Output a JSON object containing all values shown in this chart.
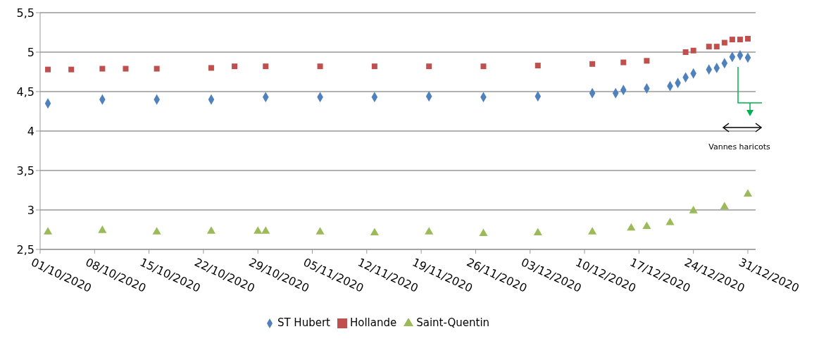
{
  "chart_data": {
    "type": "scatter",
    "xlim": [
      "2020-10-01",
      "2021-01-01"
    ],
    "xticks": [
      {
        "value": "2020-10-01",
        "label": "01/10/2020"
      },
      {
        "value": "2020-10-08",
        "label": "08/10/2020"
      },
      {
        "value": "2020-10-15",
        "label": "15/10/2020"
      },
      {
        "value": "2020-10-22",
        "label": "22/10/2020"
      },
      {
        "value": "2020-10-29",
        "label": "29/10/2020"
      },
      {
        "value": "2020-11-05",
        "label": "05/11/2020"
      },
      {
        "value": "2020-11-12",
        "label": "12/11/2020"
      },
      {
        "value": "2020-11-19",
        "label": "19/11/2020"
      },
      {
        "value": "2020-11-26",
        "label": "26/11/2020"
      },
      {
        "value": "2020-12-03",
        "label": "03/12/2020"
      },
      {
        "value": "2020-12-10",
        "label": "10/12/2020"
      },
      {
        "value": "2020-12-17",
        "label": "17/12/2020"
      },
      {
        "value": "2020-12-24",
        "label": "24/12/2020"
      },
      {
        "value": "2020-12-31",
        "label": "31/12/2020"
      }
    ],
    "ylim": [
      2.5,
      5.5
    ],
    "yticks": [
      {
        "value": 2.5,
        "label": "2,5"
      },
      3,
      {
        "value": 3.5,
        "label": "3,5"
      },
      4,
      {
        "value": 4.5,
        "label": "4,5"
      },
      5,
      {
        "value": 5.5,
        "label": "5,5"
      }
    ],
    "grid": "y",
    "legend": "bottom",
    "annotations": [
      "Vannes haricots"
    ],
    "series": [
      {
        "name": "ST Hubert",
        "color": "#4f81bd",
        "marker": "diamond",
        "x": [
          "2020-10-02",
          "2020-10-09",
          "2020-10-16",
          "2020-10-23",
          "2020-10-30",
          "2020-11-06",
          "2020-11-13",
          "2020-11-20",
          "2020-11-27",
          "2020-12-04",
          "2020-12-11",
          "2020-12-14",
          "2020-12-15",
          "2020-12-18",
          "2020-12-21",
          "2020-12-22",
          "2020-12-23",
          "2020-12-24",
          "2020-12-26",
          "2020-12-27",
          "2020-12-28",
          "2020-12-29",
          "2020-12-30",
          "2020-12-31"
        ],
        "values": [
          4.35,
          4.4,
          4.4,
          4.4,
          4.43,
          4.43,
          4.43,
          4.44,
          4.43,
          4.44,
          4.48,
          4.48,
          4.52,
          4.54,
          4.57,
          4.61,
          4.68,
          4.73,
          4.78,
          4.8,
          4.86,
          4.94,
          4.96,
          4.93
        ]
      },
      {
        "name": "Hollande",
        "color": "#c0504d",
        "marker": "square",
        "x": [
          "2020-10-02",
          "2020-10-05",
          "2020-10-09",
          "2020-10-12",
          "2020-10-16",
          "2020-10-23",
          "2020-10-26",
          "2020-10-30",
          "2020-11-06",
          "2020-11-13",
          "2020-11-20",
          "2020-11-27",
          "2020-12-04",
          "2020-12-11",
          "2020-12-15",
          "2020-12-18",
          "2020-12-23",
          "2020-12-24",
          "2020-12-26",
          "2020-12-27",
          "2020-12-28",
          "2020-12-29",
          "2020-12-30",
          "2020-12-31"
        ],
        "values": [
          4.78,
          4.78,
          4.79,
          4.79,
          4.79,
          4.8,
          4.82,
          4.82,
          4.82,
          4.82,
          4.82,
          4.82,
          4.83,
          4.85,
          4.87,
          4.89,
          5.0,
          5.02,
          5.07,
          5.07,
          5.12,
          5.16,
          5.16,
          5.17
        ]
      },
      {
        "name": "Saint-Quentin",
        "color": "#9bbb59",
        "marker": "triangle",
        "x": [
          "2020-10-02",
          "2020-10-09",
          "2020-10-16",
          "2020-10-23",
          "2020-10-29",
          "2020-10-30",
          "2020-11-06",
          "2020-11-13",
          "2020-11-20",
          "2020-11-27",
          "2020-12-04",
          "2020-12-11",
          "2020-12-16",
          "2020-12-18",
          "2020-12-21",
          "2020-12-24",
          "2020-12-28",
          "2020-12-31"
        ],
        "values": [
          2.72,
          2.74,
          2.72,
          2.73,
          2.73,
          2.73,
          2.72,
          2.71,
          2.72,
          2.7,
          2.71,
          2.72,
          2.77,
          2.79,
          2.84,
          2.99,
          3.04,
          3.2
        ]
      }
    ]
  }
}
